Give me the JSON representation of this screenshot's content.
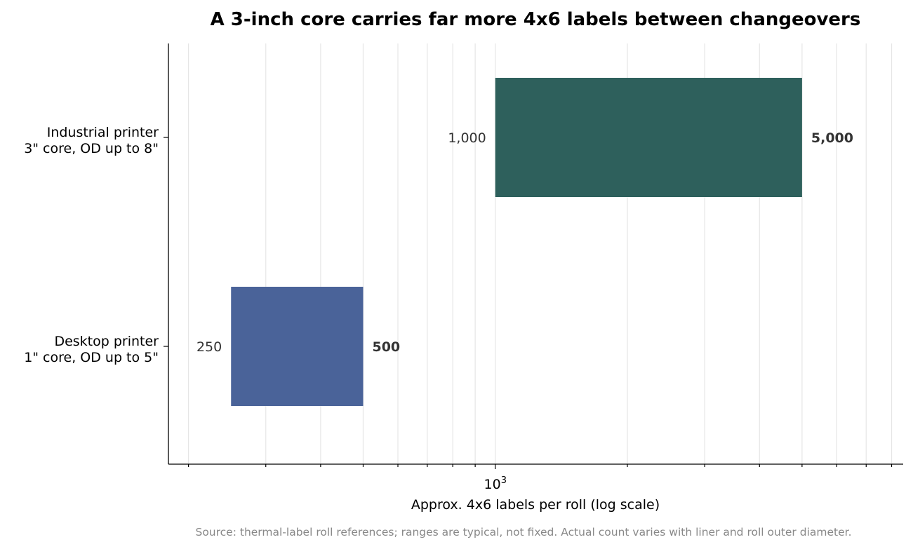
{
  "chart_data": {
    "type": "bar",
    "orientation": "horizontal",
    "title": "A 3-inch core carries far more 4x6 labels between changeovers",
    "xlabel": "Approx. 4x6 labels per roll (log scale)",
    "xscale": "log",
    "xlim": [
      180,
      8500
    ],
    "x_tick_base": "10",
    "x_tick_exponent": "3",
    "grid": "x, minor and major",
    "source": "Source: thermal-label roll references; ranges are typical, not fixed. Actual count varies with liner and roll outer diameter.",
    "categories": [
      {
        "line1": "Industrial printer",
        "line2": "3\" core, OD up to 8\""
      },
      {
        "line1": "Desktop printer",
        "line2": "1\" core, OD up to 5\""
      }
    ],
    "ranges": [
      {
        "low": 1000,
        "high": 5000,
        "low_label": "1,000",
        "high_label": "5,000",
        "color": "#2e605c"
      },
      {
        "low": 250,
        "high": 500,
        "low_label": "250",
        "high_label": "500",
        "color": "#4a6399"
      }
    ]
  }
}
